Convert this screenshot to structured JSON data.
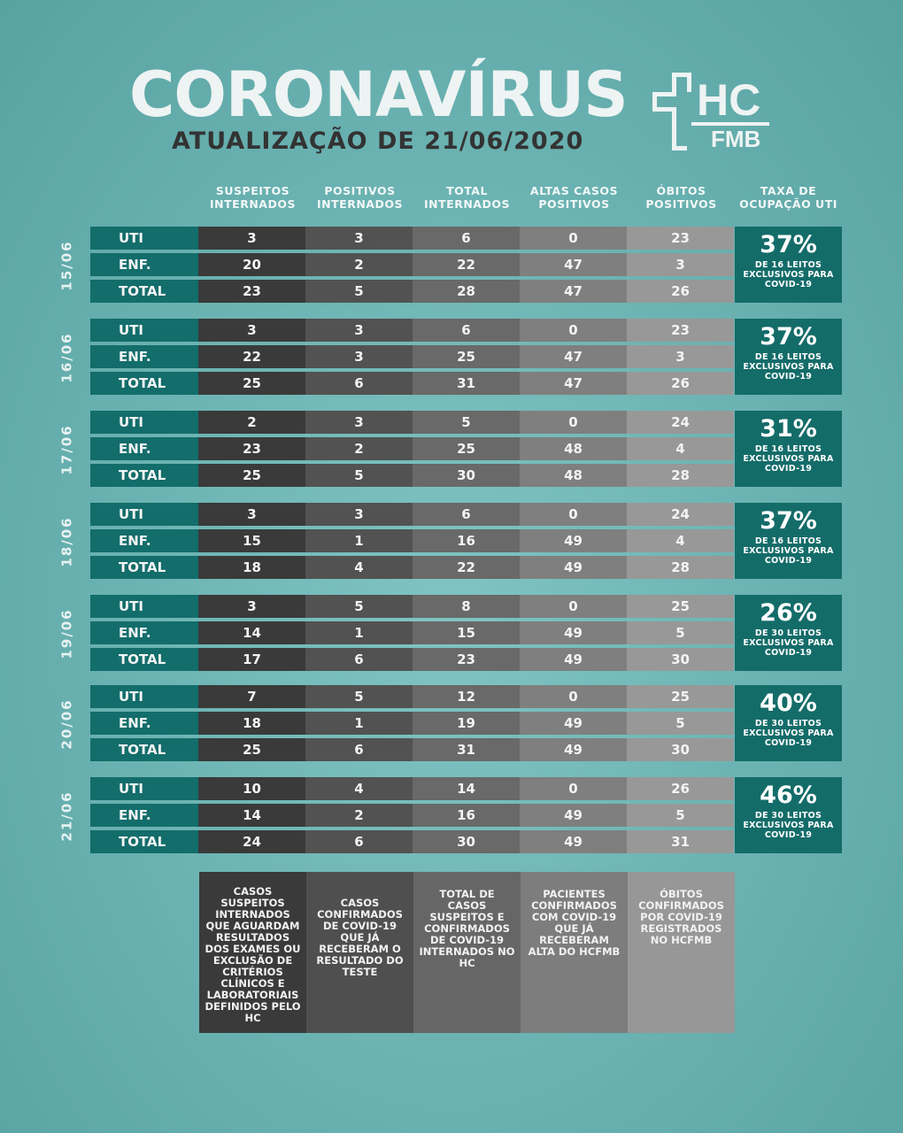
{
  "header": {
    "title": "CORONAVÍRUS",
    "subtitle": "ATUALIZAÇÃO DE 21/06/2020",
    "logo_text": "HC FMB"
  },
  "columns": [
    "SUSPEITOS INTERNADOS",
    "POSITIVOS INTERNADOS",
    "TOTAL INTERNADOS",
    "ALTAS CASOS POSITIVOS",
    "ÓBITOS POSITIVOS",
    "TAXA DE OCUPAÇÃO UTI"
  ],
  "row_labels": [
    "UTI",
    "ENF.",
    "TOTAL"
  ],
  "days": [
    {
      "date": "15/06",
      "rows": [
        [
          "3",
          "3",
          "6",
          "0",
          "23"
        ],
        [
          "20",
          "2",
          "22",
          "47",
          "3"
        ],
        [
          "23",
          "5",
          "28",
          "47",
          "26"
        ]
      ],
      "rate": "37%",
      "rate_note": "DE 16 LEITOS EXCLUSIVOS PARA COVID-19"
    },
    {
      "date": "16/06",
      "rows": [
        [
          "3",
          "3",
          "6",
          "0",
          "23"
        ],
        [
          "22",
          "3",
          "25",
          "47",
          "3"
        ],
        [
          "25",
          "6",
          "31",
          "47",
          "26"
        ]
      ],
      "rate": "37%",
      "rate_note": "DE 16 LEITOS EXCLUSIVOS PARA COVID-19"
    },
    {
      "date": "17/06",
      "rows": [
        [
          "2",
          "3",
          "5",
          "0",
          "24"
        ],
        [
          "23",
          "2",
          "25",
          "48",
          "4"
        ],
        [
          "25",
          "5",
          "30",
          "48",
          "28"
        ]
      ],
      "rate": "31%",
      "rate_note": "DE 16 LEITOS EXCLUSIVOS PARA COVID-19"
    },
    {
      "date": "18/06",
      "rows": [
        [
          "3",
          "3",
          "6",
          "0",
          "24"
        ],
        [
          "15",
          "1",
          "16",
          "49",
          "4"
        ],
        [
          "18",
          "4",
          "22",
          "49",
          "28"
        ]
      ],
      "rate": "37%",
      "rate_note": "DE 16 LEITOS EXCLUSIVOS PARA COVID-19"
    },
    {
      "date": "19/06",
      "rows": [
        [
          "3",
          "5",
          "8",
          "0",
          "25"
        ],
        [
          "14",
          "1",
          "15",
          "49",
          "5"
        ],
        [
          "17",
          "6",
          "23",
          "49",
          "30"
        ]
      ],
      "rate": "26%",
      "rate_note": "DE 30 LEITOS EXCLUSIVOS PARA COVID-19"
    },
    {
      "date": "20/06",
      "rows": [
        [
          "7",
          "5",
          "12",
          "0",
          "25"
        ],
        [
          "18",
          "1",
          "19",
          "49",
          "5"
        ],
        [
          "25",
          "6",
          "31",
          "49",
          "30"
        ]
      ],
      "rate": "40%",
      "rate_note": "DE 30 LEITOS EXCLUSIVOS PARA COVID-19"
    },
    {
      "date": "21/06",
      "rows": [
        [
          "10",
          "4",
          "14",
          "0",
          "26"
        ],
        [
          "14",
          "2",
          "16",
          "49",
          "5"
        ],
        [
          "24",
          "6",
          "30",
          "49",
          "31"
        ]
      ],
      "rate": "46%",
      "rate_note": "DE 30 LEITOS EXCLUSIVOS PARA COVID-19"
    }
  ],
  "legend": [
    "CASOS SUSPEITOS INTERNADOS QUE AGUARDAM RESULTADOS DOS EXAMES OU EXCLUSÃO DE CRITÉRIOS CLÍNICOS E LABORATORIAIS DEFINIDOS PELO HC",
    "CASOS CONFIRMADOS DE COVID-19 QUE JÁ RECEBERAM O RESULTADO DO TESTE",
    "TOTAL DE CASOS SUSPEITOS E CONFIRMADOS DE COVID-19 INTERNADOS NO HC",
    "PACIENTES CONFIRMADOS COM COVID-19 QUE JÁ RECEBERAM ALTA DO HCFMB",
    "ÓBITOS CONFIRMADOS POR COVID-19 REGISTRADOS NO HCFMB"
  ],
  "colors": {
    "label": "#136d6b",
    "rate": "#146c69",
    "bg": "#6db5b4"
  }
}
